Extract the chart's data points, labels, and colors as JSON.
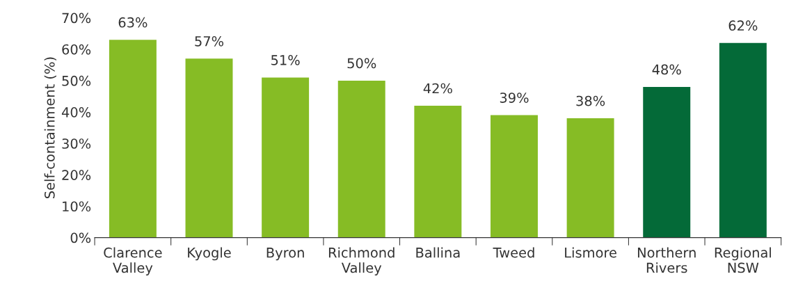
{
  "chart_data": {
    "type": "bar",
    "ylabel": "Self-containment (%)",
    "categories": [
      "Clarence\nValley",
      "Kyogle",
      "Byron",
      "Richmond\nValley",
      "Ballina",
      "Tweed",
      "Lismore",
      "Northern\nRivers",
      "Regional\nNSW"
    ],
    "values": [
      63,
      57,
      51,
      50,
      42,
      39,
      38,
      48,
      62
    ],
    "colors": [
      "#86bc25",
      "#86bc25",
      "#86bc25",
      "#86bc25",
      "#86bc25",
      "#86bc25",
      "#86bc25",
      "#046a38",
      "#046a38"
    ],
    "value_labels": [
      "63%",
      "57%",
      "51%",
      "50%",
      "42%",
      "39%",
      "38%",
      "48%",
      "62%"
    ],
    "ylim": [
      0,
      70
    ],
    "yticks": [
      {
        "value": 0,
        "label": "0%"
      },
      {
        "value": 10,
        "label": "10%"
      },
      {
        "value": 20,
        "label": "20%"
      },
      {
        "value": 30,
        "label": "30%"
      },
      {
        "value": 40,
        "label": "40%"
      },
      {
        "value": 50,
        "label": "50%"
      },
      {
        "value": 60,
        "label": "60%"
      },
      {
        "value": 70,
        "label": "70%"
      }
    ],
    "grid": false,
    "legend": false
  }
}
